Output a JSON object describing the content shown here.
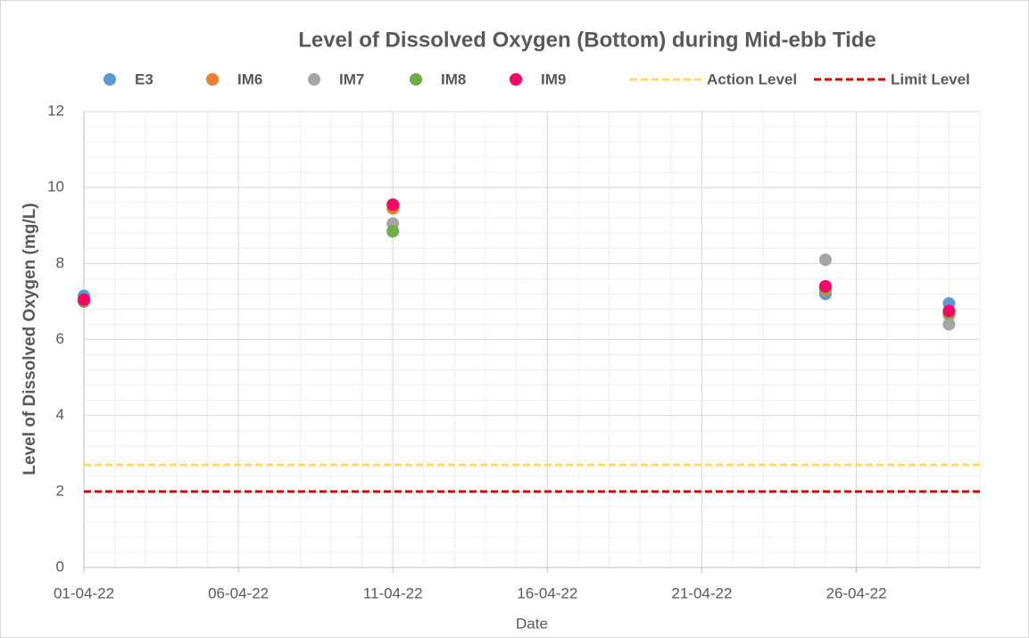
{
  "chart_data": {
    "type": "scatter",
    "title": "Level of Dissolved Oxygen (Bottom) during Mid-ebb Tide",
    "x_label": "Date",
    "y_label": "Level of Dissolved Oxygen (mg/L)",
    "x": [
      "01-04-22",
      "11-04-22",
      "25-04-22",
      "29-04-22"
    ],
    "series": [
      {
        "name": "E3",
        "color": "#5b9bd5",
        "values": [
          7.15,
          8.85,
          7.2,
          6.95
        ]
      },
      {
        "name": "IM6",
        "color": "#ed7d31",
        "values": [
          7.05,
          9.45,
          7.3,
          6.65
        ]
      },
      {
        "name": "IM7",
        "color": "#a5a5a5",
        "values": [
          7.0,
          9.05,
          8.1,
          6.4
        ]
      },
      {
        "name": "IM8",
        "color": "#70ad47",
        "values": [
          7.0,
          8.85,
          7.35,
          6.7
        ]
      },
      {
        "name": "IM9",
        "color": "#ff0066",
        "values": [
          7.05,
          9.55,
          7.4,
          6.75
        ]
      }
    ],
    "levels": [
      {
        "name": "Action Level",
        "color": "#ffd966",
        "value": 2.7
      },
      {
        "name": "Limit Level",
        "color": "#e00000",
        "value": 2.0
      }
    ],
    "xlim": [
      "01-04-22",
      "30-04-22"
    ],
    "xticks": [
      "01-04-22",
      "06-04-22",
      "11-04-22",
      "16-04-22",
      "21-04-22",
      "26-04-22"
    ],
    "ylim": [
      0,
      12
    ],
    "yticks": [
      0,
      2,
      4,
      6,
      8,
      10,
      12
    ],
    "xminor_step": 1,
    "yminor_step": 0.4,
    "grid": true
  }
}
